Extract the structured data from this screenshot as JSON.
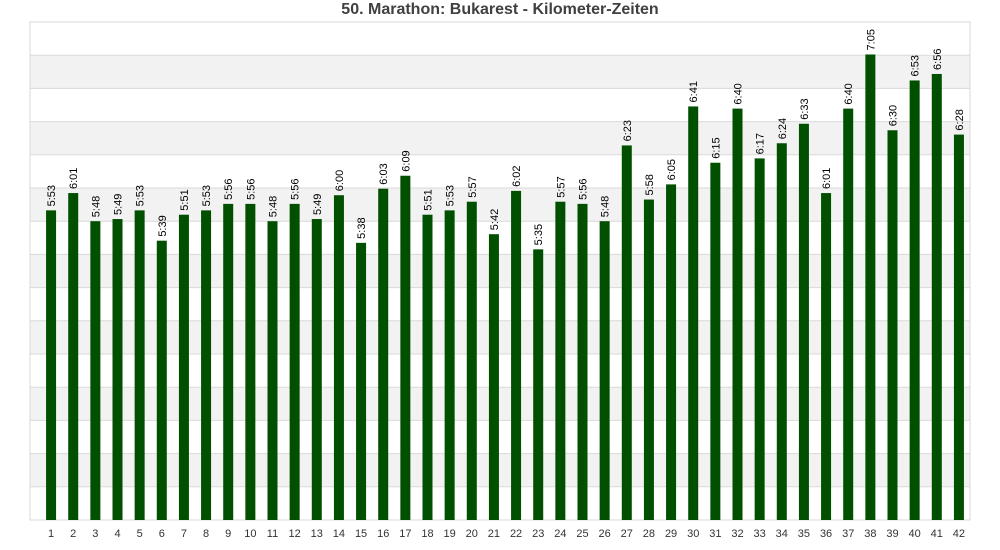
{
  "chart_data": {
    "type": "bar",
    "title": "50. Marathon: Bukarest - Kilometer-Zeiten",
    "xlabel": "",
    "ylabel": "",
    "categories": [
      "1",
      "2",
      "3",
      "4",
      "5",
      "6",
      "7",
      "8",
      "9",
      "10",
      "11",
      "12",
      "13",
      "14",
      "15",
      "16",
      "17",
      "18",
      "19",
      "20",
      "21",
      "22",
      "23",
      "24",
      "25",
      "26",
      "27",
      "28",
      "29",
      "30",
      "31",
      "32",
      "33",
      "34",
      "35",
      "36",
      "37",
      "38",
      "39",
      "40",
      "41",
      "42"
    ],
    "labels": [
      "5:53",
      "6:01",
      "5:48",
      "5:49",
      "5:53",
      "5:39",
      "5:51",
      "5:53",
      "5:56",
      "5:56",
      "5:48",
      "5:56",
      "5:49",
      "6:00",
      "5:38",
      "6:03",
      "6:09",
      "5:51",
      "5:53",
      "5:57",
      "5:42",
      "6:02",
      "5:35",
      "5:57",
      "5:56",
      "5:48",
      "6:23",
      "5:58",
      "6:05",
      "6:41",
      "6:15",
      "6:40",
      "6:17",
      "6:24",
      "6:33",
      "6:01",
      "6:40",
      "7:05",
      "6:30",
      "6:53",
      "6:56",
      "6:28"
    ],
    "values_seconds": [
      353,
      361,
      348,
      349,
      353,
      339,
      351,
      353,
      356,
      356,
      348,
      356,
      349,
      360,
      338,
      363,
      369,
      351,
      353,
      357,
      342,
      362,
      335,
      357,
      356,
      348,
      383,
      358,
      365,
      401,
      375,
      400,
      377,
      384,
      393,
      361,
      400,
      425,
      390,
      413,
      416,
      388
    ],
    "ylim_seconds": [
      210,
      440
    ],
    "bar_color": "#005000",
    "grid": true,
    "band_colors": [
      "#ffffff",
      "#f2f2f2"
    ],
    "grid_color": "#d9d9d9",
    "y_tick_labels_shown": false
  }
}
